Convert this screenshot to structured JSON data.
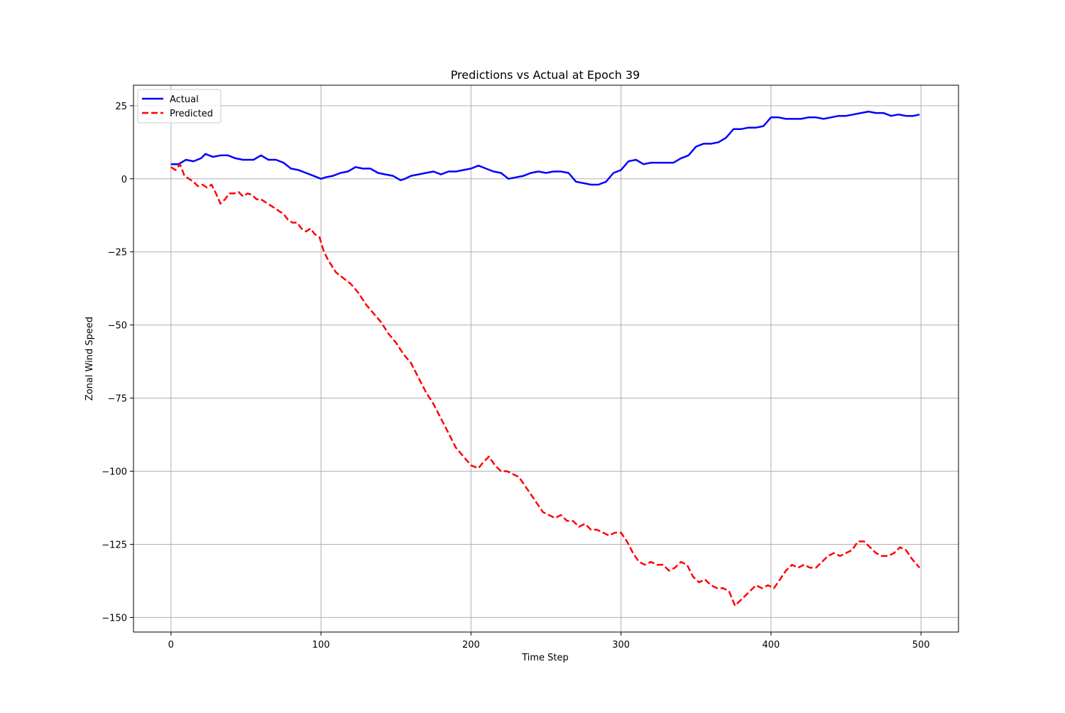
{
  "chart_data": {
    "type": "line",
    "title": "Predictions vs Actual at Epoch 39",
    "xlabel": "Time Step",
    "ylabel": "Zonal Wind Speed",
    "xlim": [
      -25,
      525
    ],
    "ylim": [
      -155,
      32
    ],
    "xticks": [
      0,
      100,
      200,
      300,
      400,
      500
    ],
    "yticks": [
      25,
      0,
      -25,
      -50,
      -75,
      -100,
      -125,
      -150
    ],
    "xtick_labels": [
      "0",
      "100",
      "200",
      "300",
      "400",
      "500"
    ],
    "ytick_labels": [
      "25",
      "0",
      "−25",
      "−50",
      "−75",
      "−100",
      "−125",
      "−150"
    ],
    "grid": true,
    "legend_position": "top-left",
    "series": [
      {
        "name": "Actual",
        "color": "#0000ff",
        "style": "solid",
        "x": [
          0,
          5,
          10,
          15,
          20,
          23,
          28,
          33,
          38,
          43,
          48,
          55,
          60,
          65,
          70,
          75,
          80,
          85,
          90,
          95,
          100,
          103,
          108,
          113,
          118,
          123,
          128,
          133,
          138,
          143,
          148,
          153,
          156,
          160,
          165,
          170,
          175,
          180,
          185,
          190,
          195,
          200,
          205,
          210,
          215,
          220,
          225,
          230,
          235,
          240,
          245,
          250,
          255,
          260,
          265,
          270,
          275,
          280,
          285,
          290,
          295,
          300,
          305,
          310,
          315,
          320,
          325,
          330,
          335,
          340,
          345,
          350,
          355,
          360,
          365,
          370,
          375,
          380,
          385,
          390,
          395,
          400,
          405,
          410,
          415,
          420,
          425,
          430,
          435,
          440,
          445,
          450,
          455,
          460,
          465,
          470,
          475,
          480,
          485,
          490,
          495,
          499
        ],
        "y": [
          5,
          5,
          6.5,
          6,
          7,
          8.5,
          7.5,
          8,
          8,
          7,
          6.5,
          6.5,
          8,
          6.5,
          6.5,
          5.5,
          3.5,
          3,
          2,
          1,
          0,
          0.5,
          1,
          2,
          2.5,
          4,
          3.5,
          3.5,
          2,
          1.5,
          1,
          -0.5,
          0,
          1,
          1.5,
          2,
          2.5,
          1.5,
          2.5,
          2.5,
          3,
          3.5,
          4.5,
          3.5,
          2.5,
          2,
          0,
          0.5,
          1,
          2,
          2.5,
          2,
          2.5,
          2.5,
          2,
          -1,
          -1.5,
          -2,
          -2,
          -1,
          2,
          3,
          6,
          6.5,
          5,
          5.5,
          5.5,
          5.5,
          5.5,
          7,
          8,
          11,
          12,
          12,
          12.5,
          14,
          17,
          17,
          17.5,
          17.5,
          18,
          21,
          21,
          20.5,
          20.5,
          20.5,
          21,
          21,
          20.5,
          21,
          21.5,
          21.5,
          22,
          22.5,
          23,
          22.5,
          22.5,
          21.5,
          22,
          21.5,
          21.5,
          22
        ]
      },
      {
        "name": "Predicted",
        "color": "#ff0000",
        "style": "dashed",
        "x": [
          0,
          3,
          6,
          9,
          12,
          15,
          18,
          21,
          24,
          27,
          30,
          33,
          36,
          39,
          42,
          45,
          48,
          51,
          54,
          57,
          60,
          63,
          66,
          69,
          72,
          75,
          78,
          81,
          84,
          87,
          90,
          93,
          96,
          99,
          102,
          105,
          110,
          115,
          120,
          125,
          130,
          135,
          140,
          145,
          150,
          155,
          160,
          165,
          170,
          175,
          180,
          185,
          190,
          195,
          200,
          205,
          208,
          212,
          216,
          220,
          224,
          228,
          232,
          236,
          240,
          244,
          248,
          252,
          256,
          260,
          264,
          268,
          272,
          276,
          280,
          284,
          288,
          292,
          296,
          300,
          304,
          308,
          312,
          316,
          320,
          324,
          328,
          332,
          336,
          340,
          344,
          348,
          352,
          356,
          360,
          364,
          368,
          372,
          376,
          378,
          382,
          386,
          390,
          394,
          398,
          402,
          406,
          410,
          414,
          418,
          422,
          426,
          430,
          434,
          438,
          442,
          446,
          450,
          454,
          458,
          462,
          466,
          470,
          474,
          478,
          482,
          486,
          490,
          494,
          499
        ],
        "y": [
          4,
          3,
          5,
          1,
          0,
          -1,
          -2.5,
          -2,
          -3,
          -2,
          -5,
          -8.5,
          -7,
          -5,
          -5,
          -4.5,
          -6,
          -5,
          -5.5,
          -7,
          -7,
          -8,
          -9,
          -10,
          -11,
          -12,
          -14,
          -15,
          -15,
          -17,
          -18,
          -17,
          -19,
          -20,
          -25,
          -28,
          -32,
          -34,
          -36,
          -39,
          -43,
          -46,
          -49,
          -53,
          -56,
          -60,
          -63,
          -68,
          -73,
          -77,
          -82,
          -87,
          -92,
          -95,
          -98,
          -99,
          -97,
          -95,
          -98,
          -100,
          -100,
          -101,
          -102,
          -105,
          -108,
          -111,
          -114,
          -115,
          -116,
          -115,
          -117,
          -117,
          -119,
          -118,
          -120,
          -120,
          -121,
          -122,
          -121,
          -121,
          -124,
          -128,
          -131,
          -132,
          -131,
          -132,
          -132,
          -134,
          -133,
          -131,
          -132,
          -136,
          -138,
          -137,
          -139,
          -140,
          -140,
          -141,
          -146,
          -145,
          -143,
          -141,
          -139,
          -140,
          -139,
          -140,
          -137,
          -134,
          -132,
          -133,
          -132,
          -133,
          -133,
          -131,
          -129,
          -128,
          -129,
          -128,
          -127,
          -124,
          -124,
          -126,
          -128,
          -129,
          -129,
          -128,
          -126,
          -127,
          -130,
          -133
        ]
      }
    ]
  }
}
